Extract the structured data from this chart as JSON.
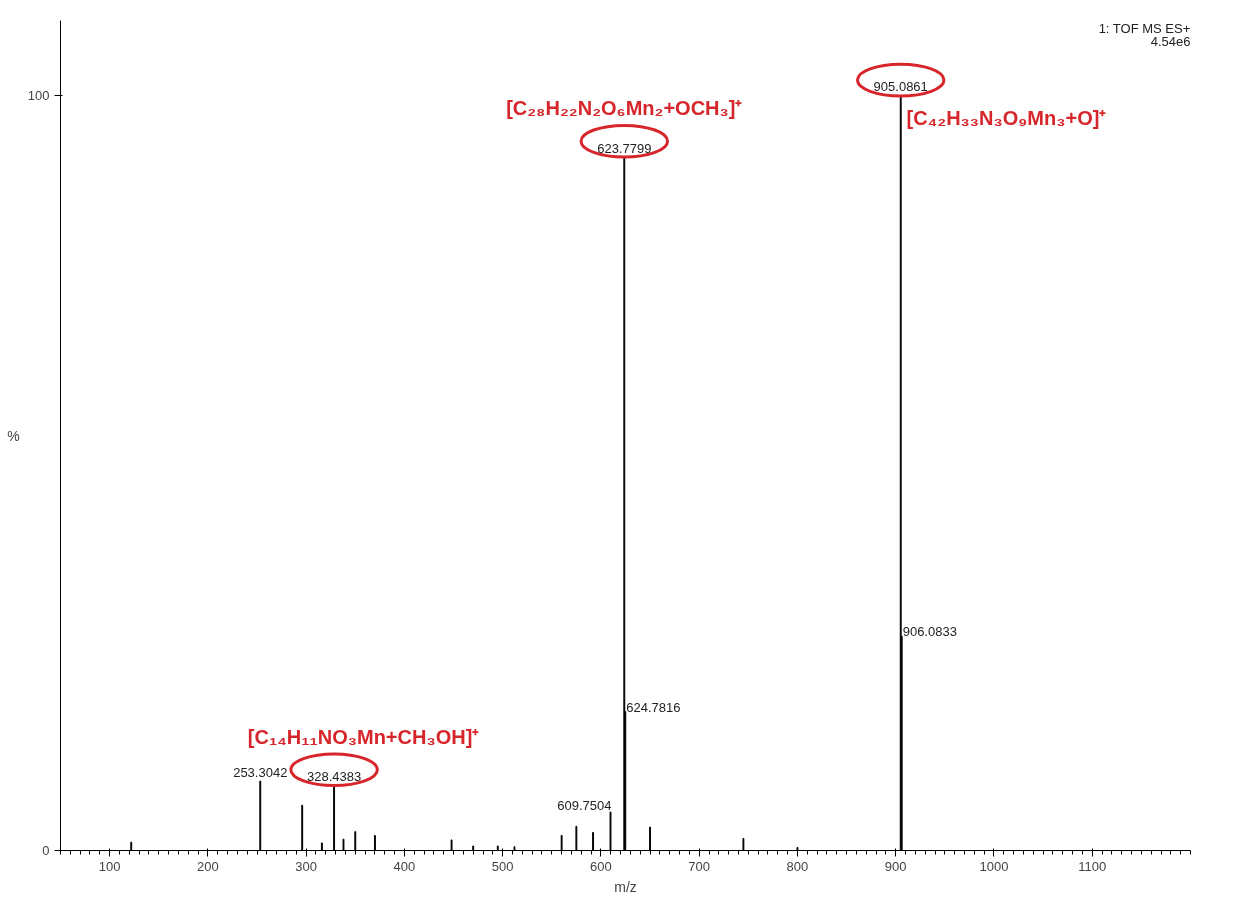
{
  "chart_data": {
    "type": "bar",
    "x": [
      122,
      253.3042,
      296,
      316,
      328.4383,
      338,
      350,
      370,
      448,
      470,
      495,
      512,
      560,
      575,
      592,
      609.7504,
      623.7799,
      624.7816,
      650,
      745,
      800,
      905.0861,
      906.0833
    ],
    "values": [
      1.1,
      9.2,
      6.0,
      1.0,
      8.6,
      1.5,
      2.5,
      2.0,
      1.4,
      0.6,
      0.6,
      0.5,
      2.0,
      3.2,
      2.4,
      5.1,
      91.9,
      18.4,
      3.1,
      1.6,
      0.4,
      100,
      28.4
    ],
    "color": "#000000",
    "xlabel": "m/z",
    "ylabel": "%",
    "xlim": [
      50,
      1200
    ],
    "ylim": [
      0,
      110
    ],
    "xticks": [
      100,
      200,
      300,
      400,
      500,
      600,
      700,
      800,
      900,
      1000,
      1100
    ],
    "yticks": [
      0,
      100
    ],
    "grid": false,
    "annotations": [
      {
        "text": "253.3042",
        "x": 253.3042,
        "y": 9.2
      },
      {
        "text": "328.4383",
        "x": 328.4383,
        "y": 8.6
      },
      {
        "text": "609.7504",
        "x": 609.7504,
        "y": 5.1
      },
      {
        "text": "623.7799",
        "x": 623.7799,
        "y": 91.9
      },
      {
        "text": "624.7816",
        "x": 624.7816,
        "y": 18.4
      },
      {
        "text": "905.0861",
        "x": 905.0861,
        "y": 100
      },
      {
        "text": "906.0833",
        "x": 906.0833,
        "y": 28.4
      },
      {
        "text": "[C₁₄H₁₁NO₃Mn+CH₃OH]⁺",
        "x": 328.4383,
        "y": 8.6
      },
      {
        "text": "[C₂₈H₂₂N₂O₆Mn₂+OCH₃]⁺",
        "x": 623.7799,
        "y": 91.9
      },
      {
        "text": "[C₄₂H₃₃N₃O₉Mn₃+O]⁺",
        "x": 905.0861,
        "y": 100
      },
      "1: TOF MS ES+",
      "4.54e6"
    ]
  }
}
